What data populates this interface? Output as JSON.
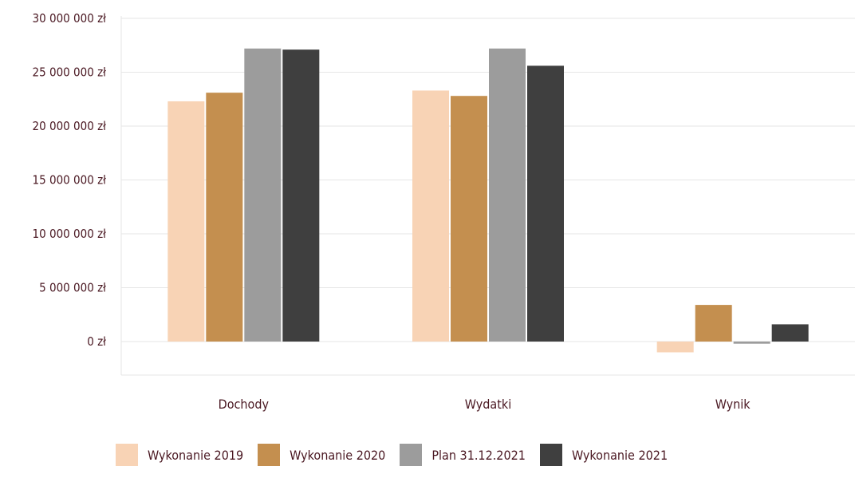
{
  "chart_data": {
    "type": "bar",
    "categories": [
      "Dochody",
      "Wydatki",
      "Wynik"
    ],
    "series": [
      {
        "name": "Wykonanie 2019",
        "color": "#f8d3b5",
        "values": [
          22300000,
          23300000,
          -1000000
        ]
      },
      {
        "name": "Wykonanie 2020",
        "color": "#c48f4f",
        "values": [
          23100000,
          22800000,
          3400000
        ]
      },
      {
        "name": "Plan 31.12.2021",
        "color": "#9c9c9c",
        "values": [
          27200000,
          27200000,
          -200000
        ]
      },
      {
        "name": "Wykonanie 2021",
        "color": "#3f3f3f",
        "values": [
          27100000,
          25600000,
          1600000
        ]
      }
    ],
    "y_ticks": [
      "0 zł",
      "5 000 000 zł",
      "10 000 000 zł",
      "15 000 000 zł",
      "20 000 000 zł",
      "25 000 000 zł",
      "30 000 000 zł"
    ],
    "ylim": [
      0,
      30000000
    ],
    "grid": true,
    "legend_position": "bottom"
  }
}
